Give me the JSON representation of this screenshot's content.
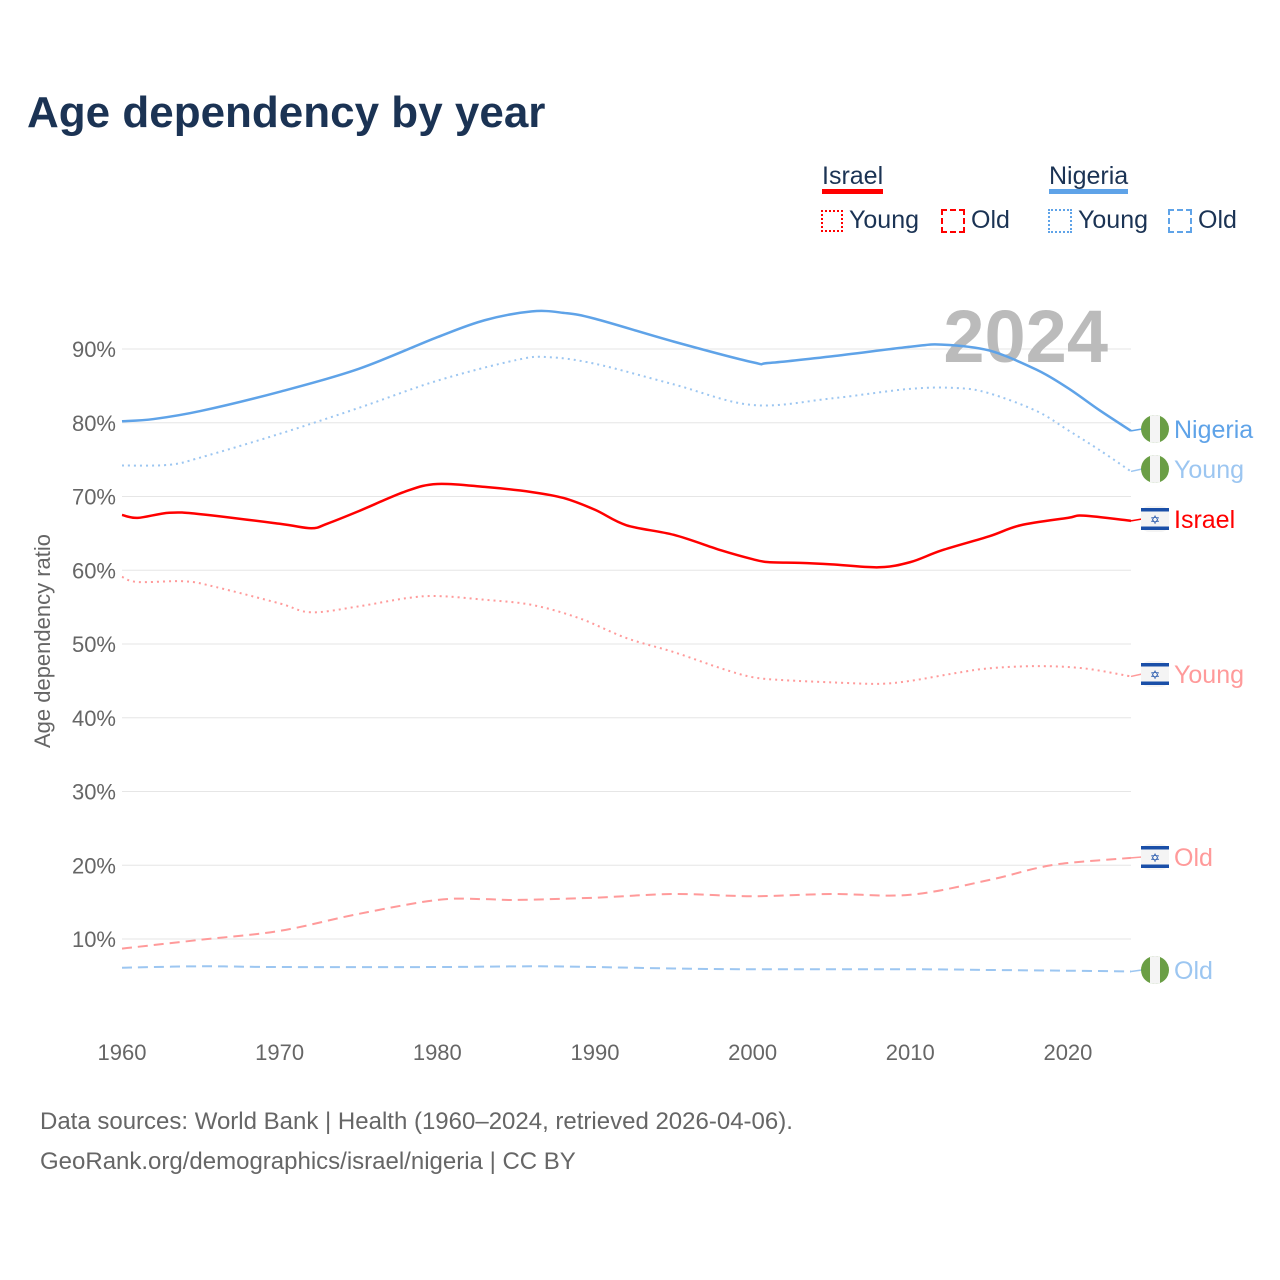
{
  "chart_data": {
    "type": "line",
    "title": "Age dependency by year",
    "ylabel": "Age dependency ratio",
    "xlabel": "",
    "xlim": [
      1960,
      2024
    ],
    "ylim": [
      0,
      100
    ],
    "x_ticks": [
      "1960",
      "1970",
      "1980",
      "1990",
      "2000",
      "2010",
      "2020"
    ],
    "x_tick_values": [
      1960,
      1970,
      1980,
      1990,
      2000,
      2010,
      2020
    ],
    "y_ticks": [
      "10%",
      "20%",
      "30%",
      "40%",
      "50%",
      "60%",
      "70%",
      "80%",
      "90%"
    ],
    "y_tick_values": [
      10,
      20,
      30,
      40,
      50,
      60,
      70,
      80,
      90
    ],
    "year_label": "2024",
    "legend": {
      "groups": [
        {
          "name": "Israel",
          "color": "#ff0000",
          "items": [
            "Young",
            "Old"
          ]
        },
        {
          "name": "Nigeria",
          "color": "#5fa3e8",
          "items": [
            "Young",
            "Old"
          ]
        }
      ],
      "placement": "top-right"
    },
    "series": [
      {
        "name": "Nigeria",
        "end_label": "Nigeria",
        "country": "nigeria",
        "color": "#5fa3e8",
        "style": "solid",
        "points": [
          [
            1960,
            80.2
          ],
          [
            1962,
            80.5
          ],
          [
            1965,
            81.6
          ],
          [
            1970,
            84.2
          ],
          [
            1975,
            87.3
          ],
          [
            1980,
            91.6
          ],
          [
            1983,
            93.9
          ],
          [
            1986,
            95.1
          ],
          [
            1988,
            94.9
          ],
          [
            1990,
            94.1
          ],
          [
            1995,
            91.0
          ],
          [
            2000,
            88.2
          ],
          [
            2001,
            88.1
          ],
          [
            2005,
            89.0
          ],
          [
            2010,
            90.3
          ],
          [
            2012,
            90.6
          ],
          [
            2015,
            89.8
          ],
          [
            2018,
            87.2
          ],
          [
            2020,
            84.7
          ],
          [
            2022,
            81.7
          ],
          [
            2024,
            78.9
          ]
        ]
      },
      {
        "name": "Nigeria Young",
        "end_label": "Young",
        "country": "nigeria",
        "color": "#9cc6f1",
        "style": "dotted",
        "points": [
          [
            1960,
            74.2
          ],
          [
            1963,
            74.3
          ],
          [
            1965,
            75.3
          ],
          [
            1970,
            78.5
          ],
          [
            1975,
            82.0
          ],
          [
            1980,
            85.7
          ],
          [
            1985,
            88.5
          ],
          [
            1987,
            88.9
          ],
          [
            1990,
            88.0
          ],
          [
            1995,
            85.2
          ],
          [
            2000,
            82.4
          ],
          [
            2005,
            83.3
          ],
          [
            2010,
            84.6
          ],
          [
            2013,
            84.7
          ],
          [
            2015,
            84.0
          ],
          [
            2018,
            81.6
          ],
          [
            2020,
            79.0
          ],
          [
            2022,
            76.3
          ],
          [
            2024,
            73.4
          ]
        ]
      },
      {
        "name": "Nigeria Old",
        "end_label": "Old",
        "country": "nigeria",
        "color": "#9cc6f1",
        "style": "dashed",
        "points": [
          [
            1960,
            6.1
          ],
          [
            1965,
            6.3
          ],
          [
            1970,
            6.2
          ],
          [
            1980,
            6.2
          ],
          [
            1986,
            6.3
          ],
          [
            1990,
            6.2
          ],
          [
            1995,
            6.0
          ],
          [
            2000,
            5.9
          ],
          [
            2010,
            5.9
          ],
          [
            2015,
            5.8
          ],
          [
            2020,
            5.7
          ],
          [
            2024,
            5.6
          ]
        ]
      },
      {
        "name": "Israel",
        "end_label": "Israel",
        "country": "israel",
        "color": "#ff0000",
        "style": "solid",
        "points": [
          [
            1960,
            67.5
          ],
          [
            1961,
            67.1
          ],
          [
            1963,
            67.8
          ],
          [
            1965,
            67.6
          ],
          [
            1970,
            66.3
          ],
          [
            1972,
            65.7
          ],
          [
            1973,
            66.3
          ],
          [
            1975,
            68.0
          ],
          [
            1978,
            70.7
          ],
          [
            1980,
            71.7
          ],
          [
            1983,
            71.3
          ],
          [
            1986,
            70.6
          ],
          [
            1988,
            69.8
          ],
          [
            1990,
            68.2
          ],
          [
            1992,
            66.1
          ],
          [
            1995,
            64.8
          ],
          [
            1998,
            62.7
          ],
          [
            2000,
            61.5
          ],
          [
            2001,
            61.1
          ],
          [
            2003,
            61.0
          ],
          [
            2005,
            60.8
          ],
          [
            2008,
            60.4
          ],
          [
            2010,
            61.1
          ],
          [
            2012,
            62.7
          ],
          [
            2015,
            64.6
          ],
          [
            2017,
            66.1
          ],
          [
            2020,
            67.1
          ],
          [
            2021,
            67.4
          ],
          [
            2024,
            66.7
          ]
        ]
      },
      {
        "name": "Israel Young",
        "end_label": "Young",
        "country": "israel",
        "color": "#ff9a9a",
        "style": "dotted",
        "points": [
          [
            1960,
            59.1
          ],
          [
            1961,
            58.4
          ],
          [
            1964,
            58.5
          ],
          [
            1966,
            57.7
          ],
          [
            1970,
            55.5
          ],
          [
            1972,
            54.3
          ],
          [
            1975,
            55.1
          ],
          [
            1978,
            56.2
          ],
          [
            1980,
            56.5
          ],
          [
            1983,
            56.0
          ],
          [
            1986,
            55.3
          ],
          [
            1989,
            53.5
          ],
          [
            1992,
            50.8
          ],
          [
            1995,
            48.9
          ],
          [
            1998,
            46.7
          ],
          [
            2000,
            45.5
          ],
          [
            2002,
            45.1
          ],
          [
            2005,
            44.8
          ],
          [
            2008,
            44.6
          ],
          [
            2010,
            45.0
          ],
          [
            2013,
            46.1
          ],
          [
            2015,
            46.7
          ],
          [
            2018,
            47.0
          ],
          [
            2021,
            46.7
          ],
          [
            2024,
            45.6
          ]
        ]
      },
      {
        "name": "Israel Old",
        "end_label": "Old",
        "country": "israel",
        "color": "#ff9a9a",
        "style": "dashed",
        "points": [
          [
            1960,
            8.7
          ],
          [
            1965,
            9.9
          ],
          [
            1970,
            11.1
          ],
          [
            1975,
            13.4
          ],
          [
            1980,
            15.3
          ],
          [
            1983,
            15.4
          ],
          [
            1985,
            15.3
          ],
          [
            1990,
            15.6
          ],
          [
            1995,
            16.1
          ],
          [
            2000,
            15.8
          ],
          [
            2005,
            16.1
          ],
          [
            2010,
            16.0
          ],
          [
            2015,
            18.0
          ],
          [
            2018,
            19.6
          ],
          [
            2020,
            20.3
          ],
          [
            2024,
            21.0
          ]
        ]
      }
    ]
  },
  "footer": {
    "line1": "Data sources: World Bank | Health (1960–2024, retrieved 2026-04-06).",
    "line2": "GeoRank.org/demographics/israel/nigeria | CC BY"
  }
}
